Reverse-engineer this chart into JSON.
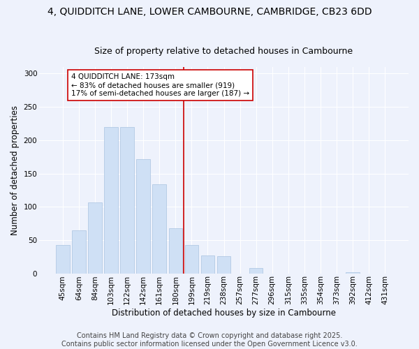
{
  "title_line1": "4, QUIDDITCH LANE, LOWER CAMBOURNE, CAMBRIDGE, CB23 6DD",
  "title_line2": "Size of property relative to detached houses in Cambourne",
  "xlabel": "Distribution of detached houses by size in Cambourne",
  "ylabel": "Number of detached properties",
  "bar_labels": [
    "45sqm",
    "64sqm",
    "84sqm",
    "103sqm",
    "122sqm",
    "142sqm",
    "161sqm",
    "180sqm",
    "199sqm",
    "219sqm",
    "238sqm",
    "257sqm",
    "277sqm",
    "296sqm",
    "315sqm",
    "335sqm",
    "354sqm",
    "373sqm",
    "392sqm",
    "412sqm",
    "431sqm"
  ],
  "bar_values": [
    42,
    65,
    106,
    220,
    220,
    172,
    134,
    68,
    42,
    27,
    26,
    0,
    8,
    0,
    0,
    0,
    0,
    0,
    2,
    0,
    0
  ],
  "bar_color": "#cfe0f5",
  "bar_edge_color": "#aac4e0",
  "vline_x": 7.5,
  "vline_color": "#cc0000",
  "annotation_text": "4 QUIDDITCH LANE: 173sqm\n← 83% of detached houses are smaller (919)\n17% of semi-detached houses are larger (187) →",
  "annotation_box_color": "#ffffff",
  "annotation_box_edge_color": "#cc0000",
  "ylim": [
    0,
    310
  ],
  "yticks": [
    0,
    50,
    100,
    150,
    200,
    250,
    300
  ],
  "background_color": "#eef2fc",
  "grid_color": "#ffffff",
  "footer_line1": "Contains HM Land Registry data © Crown copyright and database right 2025.",
  "footer_line2": "Contains public sector information licensed under the Open Government Licence v3.0.",
  "title_fontsize": 10,
  "subtitle_fontsize": 9,
  "axis_label_fontsize": 8.5,
  "tick_fontsize": 7.5,
  "annotation_fontsize": 7.5,
  "footer_fontsize": 7
}
